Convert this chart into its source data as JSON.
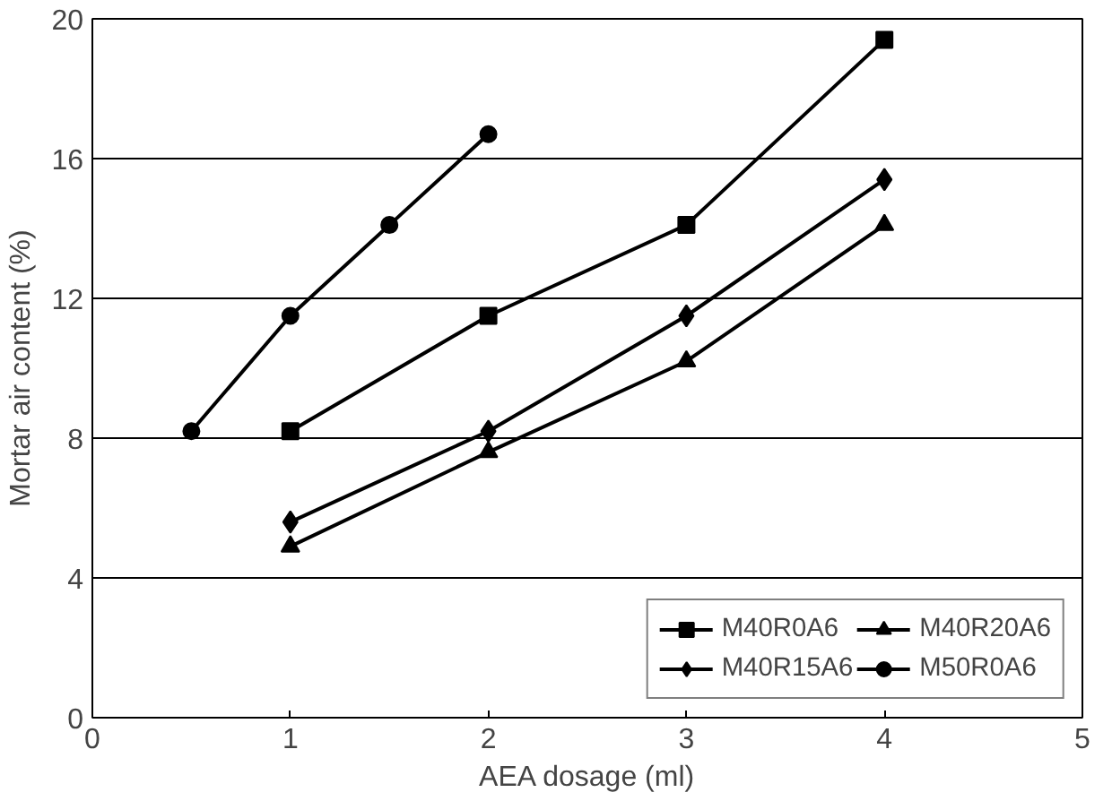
{
  "chart_data": {
    "type": "line",
    "xlabel": "AEA dosage (ml)",
    "ylabel": "Mortar air content (%)",
    "xlim": [
      0,
      5
    ],
    "xticks": [
      0,
      1,
      2,
      3,
      4,
      5
    ],
    "ylim": [
      0,
      20
    ],
    "yticks": [
      0,
      4,
      8,
      12,
      16,
      20
    ],
    "grid": "y",
    "legend": "bottom right",
    "series": [
      {
        "name": "M40R0A6",
        "color": "#000000",
        "marker": "square",
        "x": [
          1,
          2,
          3,
          4
        ],
        "values": [
          8.2,
          11.5,
          14.1,
          19.4
        ]
      },
      {
        "name": "M40R15A6",
        "color": "#000000",
        "marker": "diamond",
        "x": [
          1,
          2,
          3,
          4
        ],
        "values": [
          5.6,
          8.2,
          11.5,
          15.4
        ]
      },
      {
        "name": "M40R20A6",
        "color": "#000000",
        "marker": "triangle",
        "x": [
          1,
          2,
          3,
          4
        ],
        "values": [
          4.9,
          7.6,
          10.2,
          14.1
        ]
      },
      {
        "name": "M50R0A6",
        "color": "#000000",
        "marker": "circle",
        "x": [
          0.5,
          1,
          1.5,
          2
        ],
        "values": [
          8.2,
          11.5,
          14.1,
          16.7
        ]
      }
    ]
  }
}
